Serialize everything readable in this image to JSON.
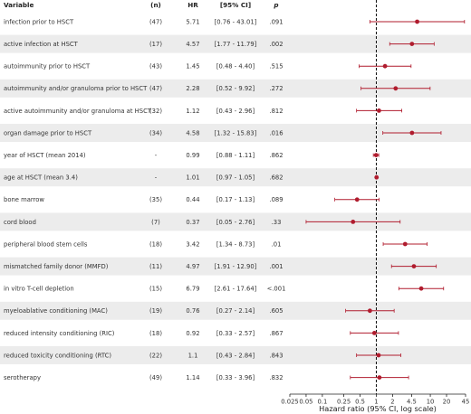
{
  "headers": {
    "variable": "Variable",
    "n": "(n)",
    "hr": "HR",
    "ci": "[95% CI]",
    "p": "p"
  },
  "chart_data": {
    "type": "forest",
    "xscale": "log",
    "xlim": [
      0.025,
      45
    ],
    "xticks": [
      "0.025",
      "0.05",
      "0.1",
      "0.25",
      "0.5",
      "1",
      "2",
      "4.5",
      "10",
      "20",
      "45"
    ],
    "xlabel": "Hazard ratio (95% CI, log scale)",
    "reference_line": 1,
    "colors": {
      "point": "#b01c2e",
      "band": "#ececec",
      "reference": "#111111"
    },
    "rows": [
      {
        "variable": "infection prior to HSCT",
        "n": "(47)",
        "hr": "5.71",
        "ci": "[0.76 - 43.01]",
        "p": ".091",
        "hr_value": 5.71,
        "lo": 0.76,
        "hi": 43.01
      },
      {
        "variable": "active infection at HSCT",
        "n": "(17)",
        "hr": "4.57",
        "ci": "[1.77 - 11.79]",
        "p": ".002",
        "hr_value": 4.57,
        "lo": 1.77,
        "hi": 11.79
      },
      {
        "variable": "autoimmunity prior to HSCT",
        "n": "(43)",
        "hr": "1.45",
        "ci": "[0.48 - 4.40]",
        "p": ".515",
        "hr_value": 1.45,
        "lo": 0.48,
        "hi": 4.4
      },
      {
        "variable": "autoimmunity and/or granuloma prior to HSCT",
        "n": "(47)",
        "hr": "2.28",
        "ci": "[0.52 - 9.92]",
        "p": ".272",
        "hr_value": 2.28,
        "lo": 0.52,
        "hi": 9.92
      },
      {
        "variable": "active autoimmunity and/or granuloma at HSCT",
        "n": "(32)",
        "hr": "1.12",
        "ci": "[0.43 - 2.96]",
        "p": ".812",
        "hr_value": 1.12,
        "lo": 0.43,
        "hi": 2.96
      },
      {
        "variable": "organ damage prior to HSCT",
        "n": "(34)",
        "hr": "4.58",
        "ci": "[1.32 - 15.83]",
        "p": ".016",
        "hr_value": 4.58,
        "lo": 1.32,
        "hi": 15.83
      },
      {
        "variable": "year of HSCT (mean 2014)",
        "n": "-",
        "hr": "0.99",
        "ci": "[0.88 - 1.11]",
        "p": ".862",
        "hr_value": 0.99,
        "lo": 0.88,
        "hi": 1.11
      },
      {
        "variable": "age at HSCT (mean 3.4)",
        "n": "-",
        "hr": "1.01",
        "ci": "[0.97 - 1.05]",
        "p": ".682",
        "hr_value": 1.01,
        "lo": 0.97,
        "hi": 1.05
      },
      {
        "variable": "bone marrow",
        "n": "(35)",
        "hr": "0.44",
        "ci": "[0.17 - 1.13]",
        "p": ".089",
        "hr_value": 0.44,
        "lo": 0.17,
        "hi": 1.13
      },
      {
        "variable": "cord blood",
        "n": "(7)",
        "hr": "0.37",
        "ci": "[0.05 - 2.76]",
        "p": ".33",
        "hr_value": 0.37,
        "lo": 0.05,
        "hi": 2.76
      },
      {
        "variable": "peripheral blood stem cells",
        "n": "(18)",
        "hr": "3.42",
        "ci": "[1.34 - 8.73]",
        "p": ".01",
        "hr_value": 3.42,
        "lo": 1.34,
        "hi": 8.73
      },
      {
        "variable": "mismatched family donor (MMFD)",
        "n": "(11)",
        "hr": "4.97",
        "ci": "[1.91 - 12.90]",
        "p": ".001",
        "hr_value": 4.97,
        "lo": 1.91,
        "hi": 12.9
      },
      {
        "variable": "in vitro T-cell depletion",
        "n": "(15)",
        "hr": "6.79",
        "ci": "[2.61 - 17.64]",
        "p": "<.001",
        "hr_value": 6.79,
        "lo": 2.61,
        "hi": 17.64
      },
      {
        "variable": "myeloablative conditioning (MAC)",
        "n": "(19)",
        "hr": "0.76",
        "ci": "[0.27 - 2.14]",
        "p": ".605",
        "hr_value": 0.76,
        "lo": 0.27,
        "hi": 2.14
      },
      {
        "variable": "reduced intensity conditioning (RIC)",
        "n": "(18)",
        "hr": "0.92",
        "ci": "[0.33 - 2.57]",
        "p": ".867",
        "hr_value": 0.92,
        "lo": 0.33,
        "hi": 2.57
      },
      {
        "variable": "reduced toxicity conditioning (RTC)",
        "n": "(22)",
        "hr": "1.1",
        "ci": "[0.43 - 2.84]",
        "p": ".843",
        "hr_value": 1.1,
        "lo": 0.43,
        "hi": 2.84
      },
      {
        "variable": "serotherapy",
        "n": "(49)",
        "hr": "1.14",
        "ci": "[0.33 - 3.96]",
        "p": ".832",
        "hr_value": 1.14,
        "lo": 0.33,
        "hi": 3.96
      }
    ]
  }
}
